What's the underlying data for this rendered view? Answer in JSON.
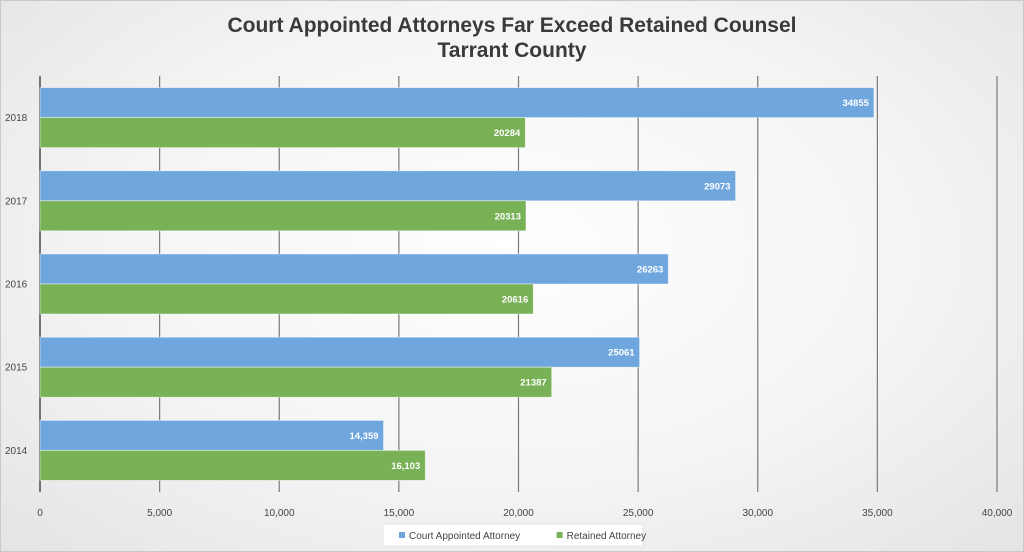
{
  "chart_data": {
    "type": "bar",
    "orientation": "horizontal",
    "title": "Court Appointed Attorneys Far Exceed Retained Counsel",
    "subtitle": "Tarrant County",
    "categories": [
      "2018",
      "2017",
      "2016",
      "2015",
      "2014"
    ],
    "series": [
      {
        "name": "Court Appointed Attorney",
        "color": "#6fa6de",
        "values": [
          34855,
          29073,
          26263,
          25061,
          14359
        ],
        "labels": [
          "34855",
          "29073",
          "26263",
          "25061",
          "14,359"
        ]
      },
      {
        "name": "Retained Attorney",
        "color": "#79b256",
        "values": [
          20284,
          20313,
          20616,
          21387,
          16103
        ],
        "labels": [
          "20284",
          "20313",
          "20616",
          "21387",
          "16,103"
        ]
      }
    ],
    "xlim": [
      0,
      40000
    ],
    "xticks": [
      0,
      5000,
      10000,
      15000,
      20000,
      25000,
      30000,
      35000,
      40000
    ],
    "xtick_labels": [
      "0",
      "5,000",
      "10,000",
      "15,000",
      "20,000",
      "25,000",
      "30,000",
      "35,000",
      "40,000"
    ],
    "grid": true,
    "legend_position": "bottom"
  }
}
